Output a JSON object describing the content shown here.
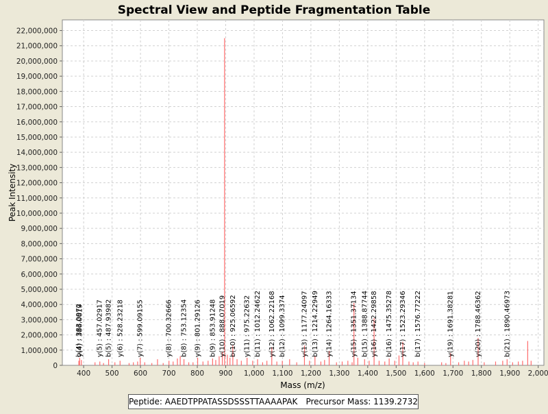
{
  "chart_data": {
    "type": "bar",
    "title": "Spectral View and Peptide Fragmentation Table",
    "xlabel": "Mass (m/z)",
    "ylabel": "Peak Intensity",
    "xlim": [
      325,
      2020
    ],
    "ylim": [
      0,
      22700000
    ],
    "xticks": [
      400,
      500,
      600,
      700,
      800,
      900,
      1000,
      1100,
      1200,
      1300,
      1400,
      1500,
      1600,
      1700,
      1800,
      1900,
      2000
    ],
    "xtick_labels": [
      "400",
      "500",
      "600",
      "700",
      "800",
      "900",
      "1,000",
      "1,100",
      "1,200",
      "1,300",
      "1,400",
      "1,500",
      "1,600",
      "1,700",
      "1,800",
      "1,900",
      "2,000"
    ],
    "yticks": [
      0,
      1000000,
      2000000,
      3000000,
      4000000,
      5000000,
      6000000,
      7000000,
      8000000,
      9000000,
      10000000,
      11000000,
      12000000,
      13000000,
      14000000,
      15000000,
      16000000,
      17000000,
      18000000,
      19000000,
      20000000,
      21000000,
      22000000
    ],
    "ytick_labels": [
      "0",
      "1,000,000",
      "2,000,000",
      "3,000,000",
      "4,000,000",
      "5,000,000",
      "6,000,000",
      "7,000,000",
      "8,000,000",
      "9,000,000",
      "10,000,000",
      "11,000,000",
      "12,000,000",
      "13,000,000",
      "14,000,000",
      "15,000,000",
      "16,000,000",
      "17,000,000",
      "18,000,000",
      "19,000,000",
      "20,000,000",
      "21,000,000",
      "22,000,000"
    ],
    "grid": true,
    "peak_color": "#ff6b6b",
    "peaks": [
      {
        "mz": 383,
        "intensity": 300000
      },
      {
        "mz": 386,
        "intensity": 500000
      },
      {
        "mz": 392,
        "intensity": 350000
      },
      {
        "mz": 440,
        "intensity": 200000
      },
      {
        "mz": 457.0,
        "intensity": 250000
      },
      {
        "mz": 470,
        "intensity": 150000
      },
      {
        "mz": 487.9,
        "intensity": 400000
      },
      {
        "mz": 510,
        "intensity": 200000
      },
      {
        "mz": 528.2,
        "intensity": 300000
      },
      {
        "mz": 560,
        "intensity": 150000
      },
      {
        "mz": 575,
        "intensity": 200000
      },
      {
        "mz": 590,
        "intensity": 250000
      },
      {
        "mz": 599.1,
        "intensity": 500000
      },
      {
        "mz": 615,
        "intensity": 200000
      },
      {
        "mz": 640,
        "intensity": 150000
      },
      {
        "mz": 660,
        "intensity": 400000
      },
      {
        "mz": 680,
        "intensity": 150000
      },
      {
        "mz": 700.3,
        "intensity": 300000
      },
      {
        "mz": 715,
        "intensity": 250000
      },
      {
        "mz": 730,
        "intensity": 450000
      },
      {
        "mz": 740,
        "intensity": 600000
      },
      {
        "mz": 753.1,
        "intensity": 400000
      },
      {
        "mz": 770,
        "intensity": 200000
      },
      {
        "mz": 785,
        "intensity": 200000
      },
      {
        "mz": 801.3,
        "intensity": 500000
      },
      {
        "mz": 820,
        "intensity": 250000
      },
      {
        "mz": 838,
        "intensity": 300000
      },
      {
        "mz": 853.9,
        "intensity": 450000
      },
      {
        "mz": 865,
        "intensity": 350000
      },
      {
        "mz": 877,
        "intensity": 600000
      },
      {
        "mz": 888.1,
        "intensity": 900000
      },
      {
        "mz": 896,
        "intensity": 21500000
      },
      {
        "mz": 906,
        "intensity": 700000
      },
      {
        "mz": 915,
        "intensity": 500000
      },
      {
        "mz": 925.1,
        "intensity": 1300000
      },
      {
        "mz": 940,
        "intensity": 400000
      },
      {
        "mz": 955,
        "intensity": 300000
      },
      {
        "mz": 975.2,
        "intensity": 500000
      },
      {
        "mz": 995,
        "intensity": 300000
      },
      {
        "mz": 1012.2,
        "intensity": 400000
      },
      {
        "mz": 1030,
        "intensity": 200000
      },
      {
        "mz": 1045,
        "intensity": 300000
      },
      {
        "mz": 1062.2,
        "intensity": 1200000
      },
      {
        "mz": 1080,
        "intensity": 250000
      },
      {
        "mz": 1099.3,
        "intensity": 300000
      },
      {
        "mz": 1125,
        "intensity": 400000
      },
      {
        "mz": 1150,
        "intensity": 200000
      },
      {
        "mz": 1177.2,
        "intensity": 1300000
      },
      {
        "mz": 1195,
        "intensity": 300000
      },
      {
        "mz": 1214.2,
        "intensity": 600000
      },
      {
        "mz": 1235,
        "intensity": 250000
      },
      {
        "mz": 1248,
        "intensity": 350000
      },
      {
        "mz": 1264.2,
        "intensity": 950000
      },
      {
        "mz": 1290,
        "intensity": 200000
      },
      {
        "mz": 1310,
        "intensity": 250000
      },
      {
        "mz": 1330,
        "intensity": 300000
      },
      {
        "mz": 1345,
        "intensity": 200000
      },
      {
        "mz": 1351.4,
        "intensity": 4100000
      },
      {
        "mz": 1365,
        "intensity": 500000
      },
      {
        "mz": 1388.9,
        "intensity": 400000
      },
      {
        "mz": 1405,
        "intensity": 300000
      },
      {
        "mz": 1422.3,
        "intensity": 3100000
      },
      {
        "mz": 1440,
        "intensity": 300000
      },
      {
        "mz": 1460,
        "intensity": 250000
      },
      {
        "mz": 1475.4,
        "intensity": 450000
      },
      {
        "mz": 1495,
        "intensity": 300000
      },
      {
        "mz": 1510,
        "intensity": 650000
      },
      {
        "mz": 1523.3,
        "intensity": 1550000
      },
      {
        "mz": 1545,
        "intensity": 250000
      },
      {
        "mz": 1560,
        "intensity": 200000
      },
      {
        "mz": 1576.8,
        "intensity": 250000
      },
      {
        "mz": 1600,
        "intensity": 150000
      },
      {
        "mz": 1660,
        "intensity": 200000
      },
      {
        "mz": 1675,
        "intensity": 150000
      },
      {
        "mz": 1691.4,
        "intensity": 800000
      },
      {
        "mz": 1720,
        "intensity": 200000
      },
      {
        "mz": 1740,
        "intensity": 300000
      },
      {
        "mz": 1755,
        "intensity": 250000
      },
      {
        "mz": 1770,
        "intensity": 350000
      },
      {
        "mz": 1788.5,
        "intensity": 1800000
      },
      {
        "mz": 1810,
        "intensity": 200000
      },
      {
        "mz": 1850,
        "intensity": 250000
      },
      {
        "mz": 1875,
        "intensity": 300000
      },
      {
        "mz": 1890.5,
        "intensity": 400000
      },
      {
        "mz": 1910,
        "intensity": 200000
      },
      {
        "mz": 1930,
        "intensity": 250000
      },
      {
        "mz": 1945,
        "intensity": 300000
      },
      {
        "mz": 1963,
        "intensity": 1600000
      },
      {
        "mz": 1975,
        "intensity": 300000
      }
    ],
    "annotations": [
      {
        "mz": 383.1,
        "top": 3900000,
        "label": "b(4) : 383.0972"
      },
      {
        "mz": 386.1,
        "top": 3900000,
        "label": "y(4) : 386.0619"
      },
      {
        "mz": 457.0,
        "top": 3900000,
        "label": "y(5) : 457.02917"
      },
      {
        "mz": 487.9,
        "top": 3900000,
        "label": "b(5) : 487.93982"
      },
      {
        "mz": 528.2,
        "top": 3900000,
        "label": "y(6) : 528.23218"
      },
      {
        "mz": 599.1,
        "top": 3900000,
        "label": "y(7) : 599.09155"
      },
      {
        "mz": 700.3,
        "top": 3600000,
        "label": "y(8) : 700.32666"
      },
      {
        "mz": 753.1,
        "top": 3800000,
        "label": "b(8) : 753.12354"
      },
      {
        "mz": 801.3,
        "top": 3800000,
        "label": "y(9) : 801.29126"
      },
      {
        "mz": 853.9,
        "top": 3800000,
        "label": "b(9) : 853.91248"
      },
      {
        "mz": 888.1,
        "top": 3800000,
        "label": "y(10) : 888.07019"
      },
      {
        "mz": 925.1,
        "top": 4000000,
        "label": "b(10) : 925.06592"
      },
      {
        "mz": 975.2,
        "top": 3700000,
        "label": "y(11) : 975.22632"
      },
      {
        "mz": 1012.2,
        "top": 3700000,
        "label": "b(11) : 1012.24622"
      },
      {
        "mz": 1062.2,
        "top": 5200000,
        "label": "y(12) : 1062.22168"
      },
      {
        "mz": 1099.3,
        "top": 3900000,
        "label": "b(12) : 1099.3374"
      },
      {
        "mz": 1177.2,
        "top": 5300000,
        "label": "y(13) : 1177.24097"
      },
      {
        "mz": 1214.2,
        "top": 4600000,
        "label": "b(13) : 1214.22949"
      },
      {
        "mz": 1264.2,
        "top": 5000000,
        "label": "y(14) : 1264.16333"
      },
      {
        "mz": 1351.4,
        "top": 8200000,
        "label": "y(15) : 1351.37134"
      },
      {
        "mz": 1388.9,
        "top": 4400000,
        "label": "b(15) : 1388.87744"
      },
      {
        "mz": 1422.3,
        "top": 7200000,
        "label": "y(16) : 1422.29858"
      },
      {
        "mz": 1475.4,
        "top": 4600000,
        "label": "b(16) : 1475.35278"
      },
      {
        "mz": 1523.3,
        "top": 5400000,
        "label": "y(17) : 1523.29346"
      },
      {
        "mz": 1576.8,
        "top": 4500000,
        "label": "b(17) : 1576.77222"
      },
      {
        "mz": 1691.4,
        "top": 4200000,
        "label": "y(19) : 1691.38281"
      },
      {
        "mz": 1788.5,
        "top": 5200000,
        "label": "y(20) : 1788.46362"
      },
      {
        "mz": 1890.5,
        "top": 4200000,
        "label": "b(21) : 1890.46973"
      }
    ],
    "legend": {
      "peptide_label": "Peptide: AAEDTPPATASSDSSSTTAAAAPAK",
      "precursor_label": "Precursor Mass: 1139.2732"
    }
  }
}
